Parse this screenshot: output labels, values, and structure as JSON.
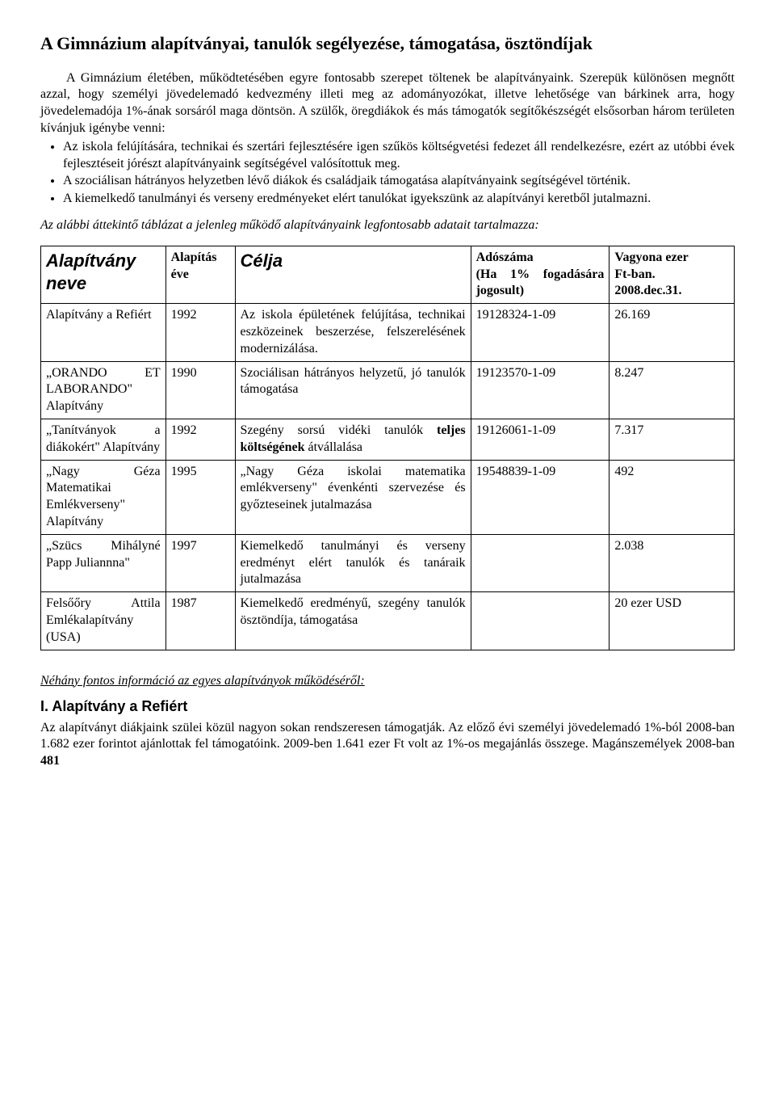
{
  "title": "A Gimnázium alapítványai, tanulók segélyezése, támogatása, ösztöndíjak",
  "intro1": "A Gimnázium életében, működtetésében egyre fontosabb szerepet töltenek be alapítványaink. Szerepük különösen megnőtt azzal, hogy személyi jövedelemadó kedvezmény illeti meg az adományozókat, illetve lehetősége van bárkinek arra, hogy jövedelemadója 1%-ának sorsáról maga döntsön. A szülők, öregdiákok és más támogatók segítőkészségét elsősorban három területen kívánjuk igénybe venni:",
  "bullets": [
    "Az iskola felújítására, technikai és szertári fejlesztésére igen szűkös költségvetési fedezet áll rendelkezésre, ezért az utóbbi évek fejlesztéseit jórészt alapítványaink segítségével valósítottuk meg.",
    "A szociálisan hátrányos helyzetben lévő diákok és családjaik támogatása alapítványaink segítségével történik.",
    "A kiemelkedő tanulmányi és verseny eredményeket elért tanulókat igyekszünk az alapítványi keretből jutalmazni."
  ],
  "italic_lead": "Az alábbi áttekintő táblázat a jelenleg működő alapítványaink legfontosabb adatait tartalmazza:",
  "table": {
    "headers": {
      "name": "Alapítvány neve",
      "year": "Alapítás éve",
      "purpose": "Célja",
      "tax_label": "Adószáma",
      "tax_sub": "(Ha 1% fogadására jogosult)",
      "wealth_l1": "Vagyona ezer",
      "wealth_l2": "Ft-ban.",
      "wealth_l3": "2008.dec.31."
    },
    "rows": [
      {
        "name": "Alapítvány a Refiért",
        "year": "1992",
        "purpose": "Az iskola épületének felújítása, technikai eszközeinek beszerzése, felszerelésének modernizálása.",
        "tax": "19128324-1-09",
        "wealth": "26.169"
      },
      {
        "name": "„ORANDO ET LABORANDO\" Alapítvány",
        "year": "1990",
        "purpose": "Szociálisan hátrányos helyzetű, jó tanulók támogatása",
        "tax": "19123570-1-09",
        "wealth": "8.247"
      },
      {
        "name": "„Tanítványok a diákokért\" Alapítvány",
        "year": "1992",
        "purpose_pre": "Szegény sorsú vidéki tanulók ",
        "purpose_bold": "teljes költségének",
        "purpose_post": " átvállalása",
        "tax": "19126061-1-09",
        "wealth": "7.317"
      },
      {
        "name": "„Nagy Géza Matematikai Emlékverseny\" Alapítvány",
        "year": "1995",
        "purpose": "„Nagy Géza iskolai matematika emlékverseny\" évenkénti szervezése és győzteseinek jutalmazása",
        "tax": "19548839-1-09",
        "wealth": "492"
      },
      {
        "name": "„Szücs Mihályné Papp Juliannna\"",
        "year": "1997",
        "purpose": "Kiemelkedő tanulmányi és verseny eredményt elért tanulók és tanáraik jutalmazása",
        "tax": "",
        "wealth": "2.038"
      },
      {
        "name": "Felsőőry Attila Emlékalapítvány (USA)",
        "year": "1987",
        "purpose": "Kiemelkedő eredményű, szegény tanulók ösztöndíja, támogatása",
        "tax": "",
        "wealth": "20 ezer USD"
      }
    ]
  },
  "subhead": "Néhány fontos információ az egyes alapítványok működéséről:",
  "section1_title": "I. Alapítvány a Refiért",
  "section1_body_pre": "Az alapítványt diákjaink szülei közül nagyon sokan rendszeresen támogatják. Az előző évi személyi jövedelemadó 1%-ból 2008-ban 1.682 ezer forintot ajánlottak fel támogatóink. 2009-ben 1.641 ezer Ft volt az 1%-os megajánlás összege. Magánszemélyek 2008-ban ",
  "section1_body_bold": "481"
}
